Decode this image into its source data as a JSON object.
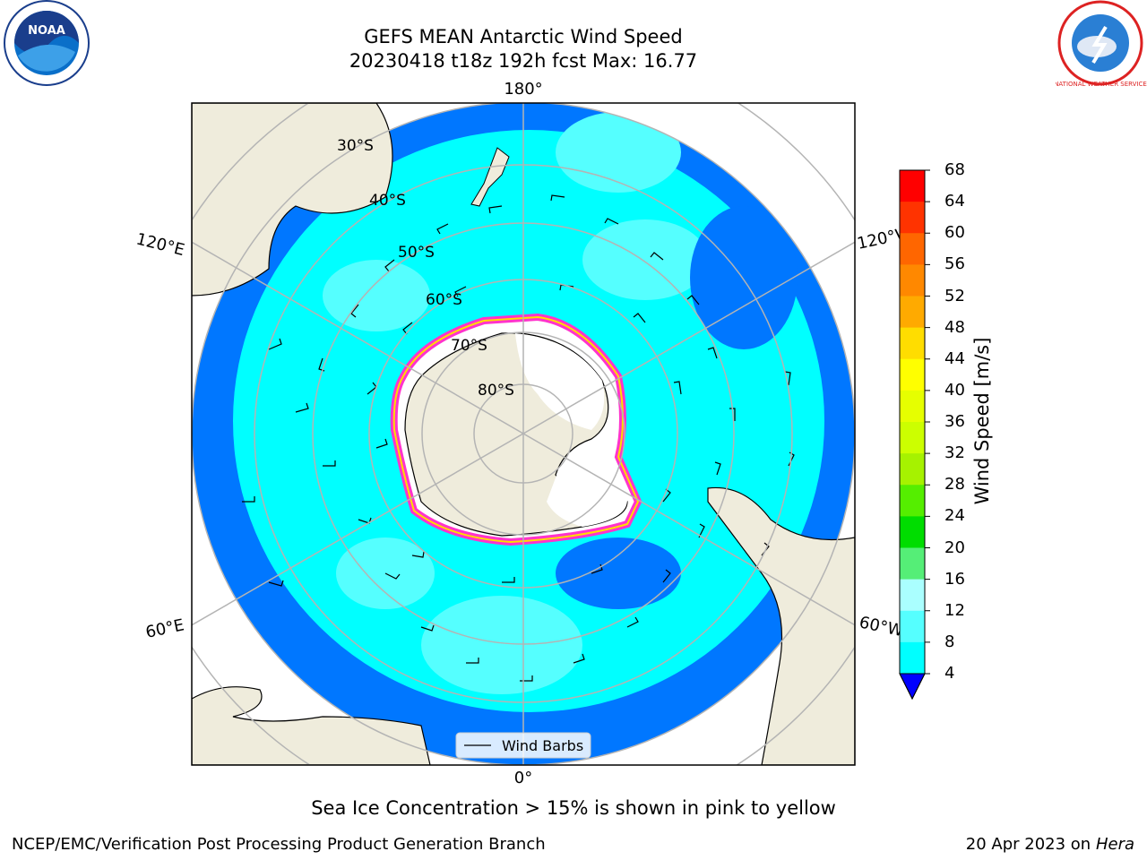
{
  "title_line1": "GEFS MEAN Antarctic Wind Speed",
  "title_line2": "20230418 t18z 192h fcst   Max: 16.77",
  "longitude_labels": {
    "top": "180°",
    "bottom": "0°",
    "upper_left": "120°E",
    "upper_right": "120°W",
    "lower_left": "60°E",
    "lower_right": "60°W"
  },
  "latitude_labels": [
    "30°S",
    "40°S",
    "50°S",
    "60°S",
    "70°S",
    "80°S"
  ],
  "legend_label": "Wind Barbs",
  "colorbar": {
    "label": "Wind Speed [m/s]",
    "ticks": [
      "68",
      "64",
      "60",
      "56",
      "52",
      "48",
      "44",
      "40",
      "36",
      "32",
      "28",
      "24",
      "20",
      "16",
      "12",
      "8",
      "4"
    ],
    "colors": [
      "#ff0000",
      "#ff3300",
      "#ff6600",
      "#ff8800",
      "#ffaa00",
      "#ffdd00",
      "#ffff00",
      "#e6ff00",
      "#ccff00",
      "#a6f200",
      "#55ee00",
      "#00dd00",
      "#55ee77",
      "#aaffff",
      "#55ffff",
      "#00ffff",
      "#0077ff"
    ],
    "under_color": "#0000ff"
  },
  "sea_ice_note": "Sea Ice Concentration > 15% is shown in pink to yellow",
  "footer_left": "NCEP/EMC/Verification Post Processing Product Generation Branch",
  "footer_date": "20 Apr 2023 on ",
  "footer_host": "Hera",
  "logos": {
    "left": "NOAA",
    "right": "NATIONAL WEATHER SERVICE"
  }
}
